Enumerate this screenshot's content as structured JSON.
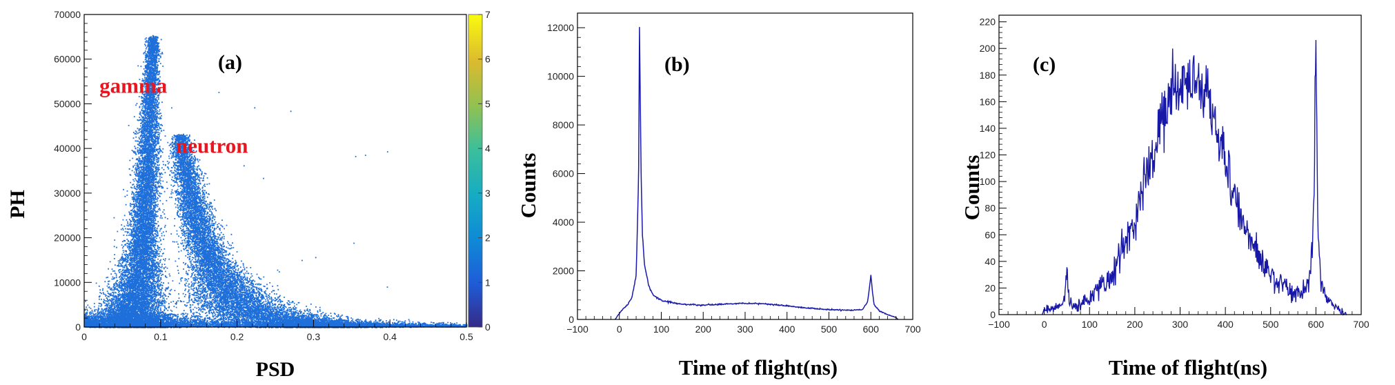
{
  "colors": {
    "hist_line": "#1818a8",
    "scatter": "#1e6fd9",
    "label_red": "#e8171f",
    "axis": "#000000"
  },
  "chart_data": [
    {
      "type": "heatmap",
      "panel_label": "(a)",
      "xlabel": "PSD",
      "ylabel": "PH",
      "xlim": [
        0,
        0.5
      ],
      "ylim": [
        0,
        70000
      ],
      "xticks": [
        0,
        0.1,
        0.2,
        0.3,
        0.4,
        0.5
      ],
      "xtick_labels": [
        "0",
        "0.1",
        "0.2",
        "0.3",
        "0.4",
        "0.5"
      ],
      "yticks": [
        0,
        10000,
        20000,
        30000,
        40000,
        50000,
        60000,
        70000
      ],
      "ytick_labels": [
        "0",
        "10000",
        "20000",
        "30000",
        "40000",
        "50000",
        "60000",
        "70000"
      ],
      "colorbar": {
        "range": [
          0,
          7
        ],
        "ticks": [
          "0",
          "1",
          "2",
          "3",
          "4",
          "5",
          "6",
          "7"
        ]
      },
      "annotations": [
        {
          "text": "gamma",
          "x": 0.02,
          "y": 52500
        },
        {
          "text": "neutron",
          "x": 0.12,
          "y": 39000
        }
      ],
      "bands": [
        {
          "name": "gamma",
          "ph_max": 65000,
          "ridge": [
            [
              0.05,
              500
            ],
            [
              0.065,
              5000
            ],
            [
              0.072,
              12000
            ],
            [
              0.077,
              22000
            ],
            [
              0.081,
              32000
            ],
            [
              0.084,
              42000
            ],
            [
              0.086,
              52000
            ],
            [
              0.088,
              60000
            ],
            [
              0.09,
              65000
            ]
          ],
          "sigma_psd": [
            [
              0,
              0.022
            ],
            [
              20000,
              0.01
            ],
            [
              65000,
              0.004
            ]
          ]
        },
        {
          "name": "neutron",
          "ph_max": 43000,
          "ridge": [
            [
              0.3,
              500
            ],
            [
              0.23,
              2500
            ],
            [
              0.2,
              5500
            ],
            [
              0.18,
              10000
            ],
            [
              0.165,
              15000
            ],
            [
              0.15,
              22000
            ],
            [
              0.138,
              30000
            ],
            [
              0.13,
              37000
            ],
            [
              0.125,
              43000
            ]
          ],
          "sigma_psd": [
            [
              0,
              0.04
            ],
            [
              15000,
              0.014
            ],
            [
              43000,
              0.006
            ]
          ]
        }
      ]
    },
    {
      "type": "line",
      "panel_label": "(b)",
      "xlabel": "Time of flight(ns)",
      "ylabel": "Counts",
      "xlim": [
        -100,
        700
      ],
      "ylim": [
        0,
        12600
      ],
      "xticks": [
        -100,
        0,
        100,
        200,
        300,
        400,
        500,
        600,
        700
      ],
      "xtick_labels": [
        "−100",
        "0",
        "100",
        "200",
        "300",
        "400",
        "500",
        "600",
        "700"
      ],
      "yticks": [
        0,
        2000,
        4000,
        6000,
        8000,
        10000,
        12000
      ],
      "ytick_labels": [
        "0",
        "2000",
        "4000",
        "6000",
        "8000",
        "10000",
        "12000"
      ],
      "x": [
        -10,
        0,
        10,
        20,
        30,
        40,
        44,
        46,
        48,
        50,
        52,
        55,
        60,
        70,
        80,
        100,
        150,
        200,
        250,
        300,
        350,
        400,
        450,
        500,
        550,
        580,
        592,
        596,
        600,
        604,
        608,
        620,
        640,
        660,
        665
      ],
      "y": [
        0,
        250,
        450,
        600,
        900,
        1800,
        4500,
        6200,
        12000,
        9000,
        6000,
        3500,
        2200,
        1400,
        1000,
        780,
        620,
        590,
        630,
        660,
        640,
        560,
        470,
        400,
        380,
        400,
        700,
        1200,
        1800,
        1100,
        600,
        350,
        200,
        80,
        0
      ]
    },
    {
      "type": "line",
      "panel_label": "(c)",
      "xlabel": "Time of flight(ns)",
      "ylabel": "Counts",
      "xlim": [
        -100,
        700
      ],
      "ylim": [
        0,
        225
      ],
      "xticks": [
        -100,
        0,
        100,
        200,
        300,
        400,
        500,
        600,
        700
      ],
      "xtick_labels": [
        "−100",
        "0",
        "100",
        "200",
        "300",
        "400",
        "500",
        "600",
        "700"
      ],
      "yticks": [
        0,
        20,
        40,
        60,
        80,
        100,
        120,
        140,
        160,
        180,
        200,
        220
      ],
      "ytick_labels": [
        "0",
        "20",
        "40",
        "60",
        "80",
        "100",
        "120",
        "140",
        "160",
        "180",
        "200",
        "220"
      ],
      "x": [
        -5,
        0,
        20,
        40,
        45,
        48,
        50,
        52,
        55,
        60,
        80,
        100,
        150,
        200,
        230,
        260,
        280,
        300,
        320,
        340,
        360,
        380,
        400,
        430,
        460,
        500,
        540,
        570,
        585,
        592,
        596,
        598,
        600,
        602,
        605,
        610,
        620,
        640,
        660,
        668
      ],
      "y": [
        0,
        3,
        5,
        8,
        15,
        25,
        48,
        25,
        12,
        6,
        8,
        12,
        30,
        70,
        110,
        148,
        165,
        170,
        180,
        172,
        160,
        140,
        115,
        80,
        55,
        30,
        18,
        15,
        25,
        50,
        95,
        160,
        215,
        130,
        60,
        30,
        15,
        6,
        2,
        0
      ]
    }
  ]
}
